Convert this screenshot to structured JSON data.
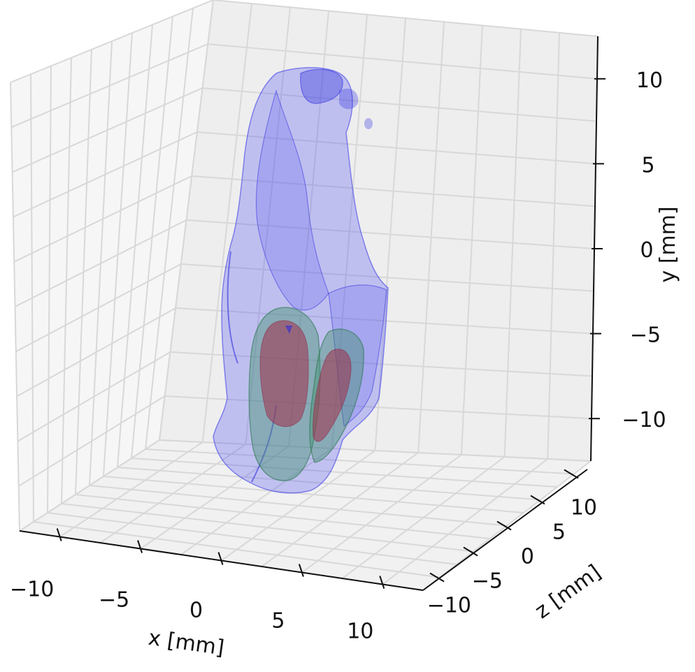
{
  "chart_data": {
    "type": "3d-surface",
    "xlabel": "x [mm]",
    "ylabel": "y [mm]",
    "zlabel": "z [mm]",
    "x_ticks": [
      "−10",
      "−5",
      "0",
      "5",
      "10"
    ],
    "y_ticks": [
      "−10",
      "−5",
      "0",
      "5",
      "10"
    ],
    "z_ticks": [
      "−10",
      "−5",
      "0",
      "5",
      "10"
    ],
    "xlim": [
      -12.5,
      12.5
    ],
    "ylim": [
      -12.5,
      12.5
    ],
    "zlim": [
      -12.5,
      12.5
    ],
    "grid": true,
    "surfaces": [
      {
        "layer": "outer",
        "color": "#3a3af5"
      },
      {
        "layer": "middle",
        "color": "#3f8f6a"
      },
      {
        "layer": "inner",
        "color": "#a0304a"
      }
    ]
  }
}
